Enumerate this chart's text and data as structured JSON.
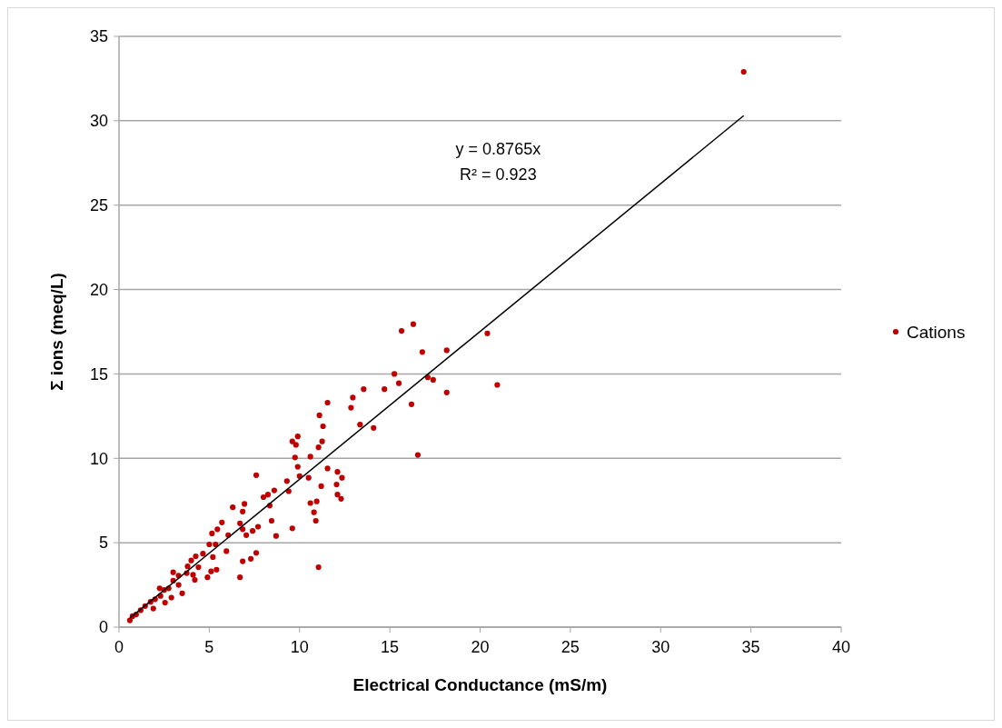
{
  "chart_data": {
    "type": "scatter",
    "xlabel": "Electrical Conductance (mS/m)",
    "ylabel": "Σ ions (meq/L)",
    "xlim": [
      0,
      40
    ],
    "ylim": [
      0,
      35
    ],
    "xticks": [
      0,
      5,
      10,
      15,
      20,
      25,
      30,
      35,
      40
    ],
    "yticks": [
      0,
      5,
      10,
      15,
      20,
      25,
      30,
      35
    ],
    "grid": "y",
    "legend": "right",
    "annotations": [
      "y = 0.8765x",
      "R² = 0.923"
    ],
    "series": [
      {
        "name": "Cations",
        "color": "#c00000",
        "marker": "circle",
        "x": [
          34.6,
          15.65,
          16.3,
          16.8,
          18.15,
          20.4,
          20.95,
          17.1,
          17.4,
          15.25,
          15.5,
          14.7,
          13.55,
          18.15,
          16.2,
          16.55,
          12.95,
          12.85,
          11.55,
          13.35,
          14.1,
          11.1,
          11.3,
          11.25,
          11.05,
          10.6,
          9.9,
          9.8,
          9.6,
          9.75,
          9.9,
          10.0,
          10.5,
          11.55,
          12.1,
          12.35,
          12.05,
          11.2,
          10.6,
          10.95,
          12.1,
          12.3,
          10.8,
          10.9,
          9.6,
          11.05,
          9.3,
          9.4,
          8.6,
          7.6,
          8.25,
          8.35,
          8.0,
          8.45,
          8.7,
          6.3,
          6.95,
          6.85,
          6.7,
          6.85,
          7.05,
          7.4,
          7.7,
          7.6,
          7.3,
          6.85,
          6.7,
          5.95,
          6.05,
          5.7,
          5.45,
          5.15,
          5.0,
          5.35,
          5.2,
          5.4,
          5.1,
          4.9,
          4.65,
          4.25,
          4.0,
          4.4,
          4.1,
          4.2,
          3.75,
          3.5,
          3.3,
          3.0,
          3.3,
          2.75,
          2.5,
          2.3,
          2.0,
          1.75,
          1.45,
          1.2,
          0.95,
          0.75,
          0.6,
          1.9,
          2.55,
          2.9,
          2.25,
          3.8,
          3.0
        ],
        "values": [
          32.9,
          17.55,
          17.95,
          16.3,
          16.4,
          17.4,
          14.35,
          14.8,
          14.65,
          15.0,
          14.45,
          14.1,
          14.1,
          13.9,
          13.2,
          10.2,
          13.6,
          13.0,
          13.3,
          12.0,
          11.8,
          12.55,
          11.9,
          11.0,
          10.65,
          10.1,
          11.3,
          10.8,
          11.0,
          10.05,
          9.5,
          8.95,
          8.85,
          9.4,
          9.2,
          8.85,
          8.45,
          8.35,
          7.35,
          7.45,
          7.85,
          7.6,
          6.8,
          6.3,
          5.85,
          3.55,
          8.65,
          8.05,
          8.1,
          9.0,
          7.85,
          7.2,
          7.7,
          6.3,
          5.4,
          7.1,
          7.3,
          6.85,
          6.15,
          5.8,
          5.45,
          5.7,
          5.95,
          4.4,
          4.05,
          3.9,
          2.95,
          4.5,
          5.45,
          6.2,
          5.8,
          5.55,
          4.9,
          4.9,
          4.15,
          3.4,
          3.3,
          2.95,
          4.35,
          4.2,
          3.95,
          3.55,
          3.1,
          2.8,
          3.2,
          2.0,
          3.05,
          2.75,
          2.5,
          2.3,
          2.2,
          1.85,
          1.65,
          1.5,
          1.25,
          1.0,
          0.75,
          0.65,
          0.4,
          1.1,
          1.45,
          1.75,
          2.3,
          3.6,
          3.25
        ]
      },
      {
        "type": "line",
        "color": "#000000",
        "x": [
          0.6,
          34.6
        ],
        "values": [
          0.53,
          30.3
        ]
      }
    ]
  }
}
